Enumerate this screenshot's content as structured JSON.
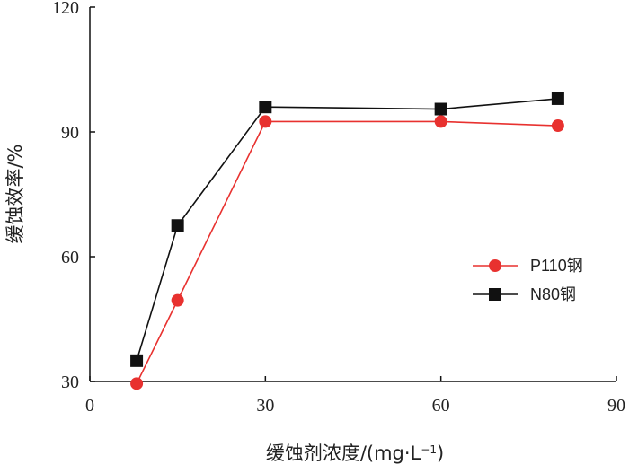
{
  "chart_data": {
    "type": "line",
    "xlabel": "缓蚀剂浓度/(mg·L",
    "xlabel_sup": "−1",
    "xlabel_close": ")",
    "ylabel": "缓蚀效率/%",
    "xlim": [
      0,
      90
    ],
    "ylim": [
      30,
      120
    ],
    "xticks": [
      0,
      30,
      60,
      90
    ],
    "yticks": [
      30,
      60,
      90,
      120
    ],
    "grid": false,
    "legend_position": "right",
    "series": [
      {
        "name": "P110钢",
        "color": "#e8312f",
        "marker": "circle",
        "x": [
          8,
          15,
          30,
          60,
          80
        ],
        "y": [
          29.5,
          49.5,
          92.5,
          92.5,
          91.5
        ]
      },
      {
        "name": "N80钢",
        "color": "#111111",
        "marker": "square",
        "x": [
          8,
          15,
          30,
          60,
          80
        ],
        "y": [
          35,
          67.5,
          96,
          95.5,
          98
        ]
      }
    ]
  }
}
